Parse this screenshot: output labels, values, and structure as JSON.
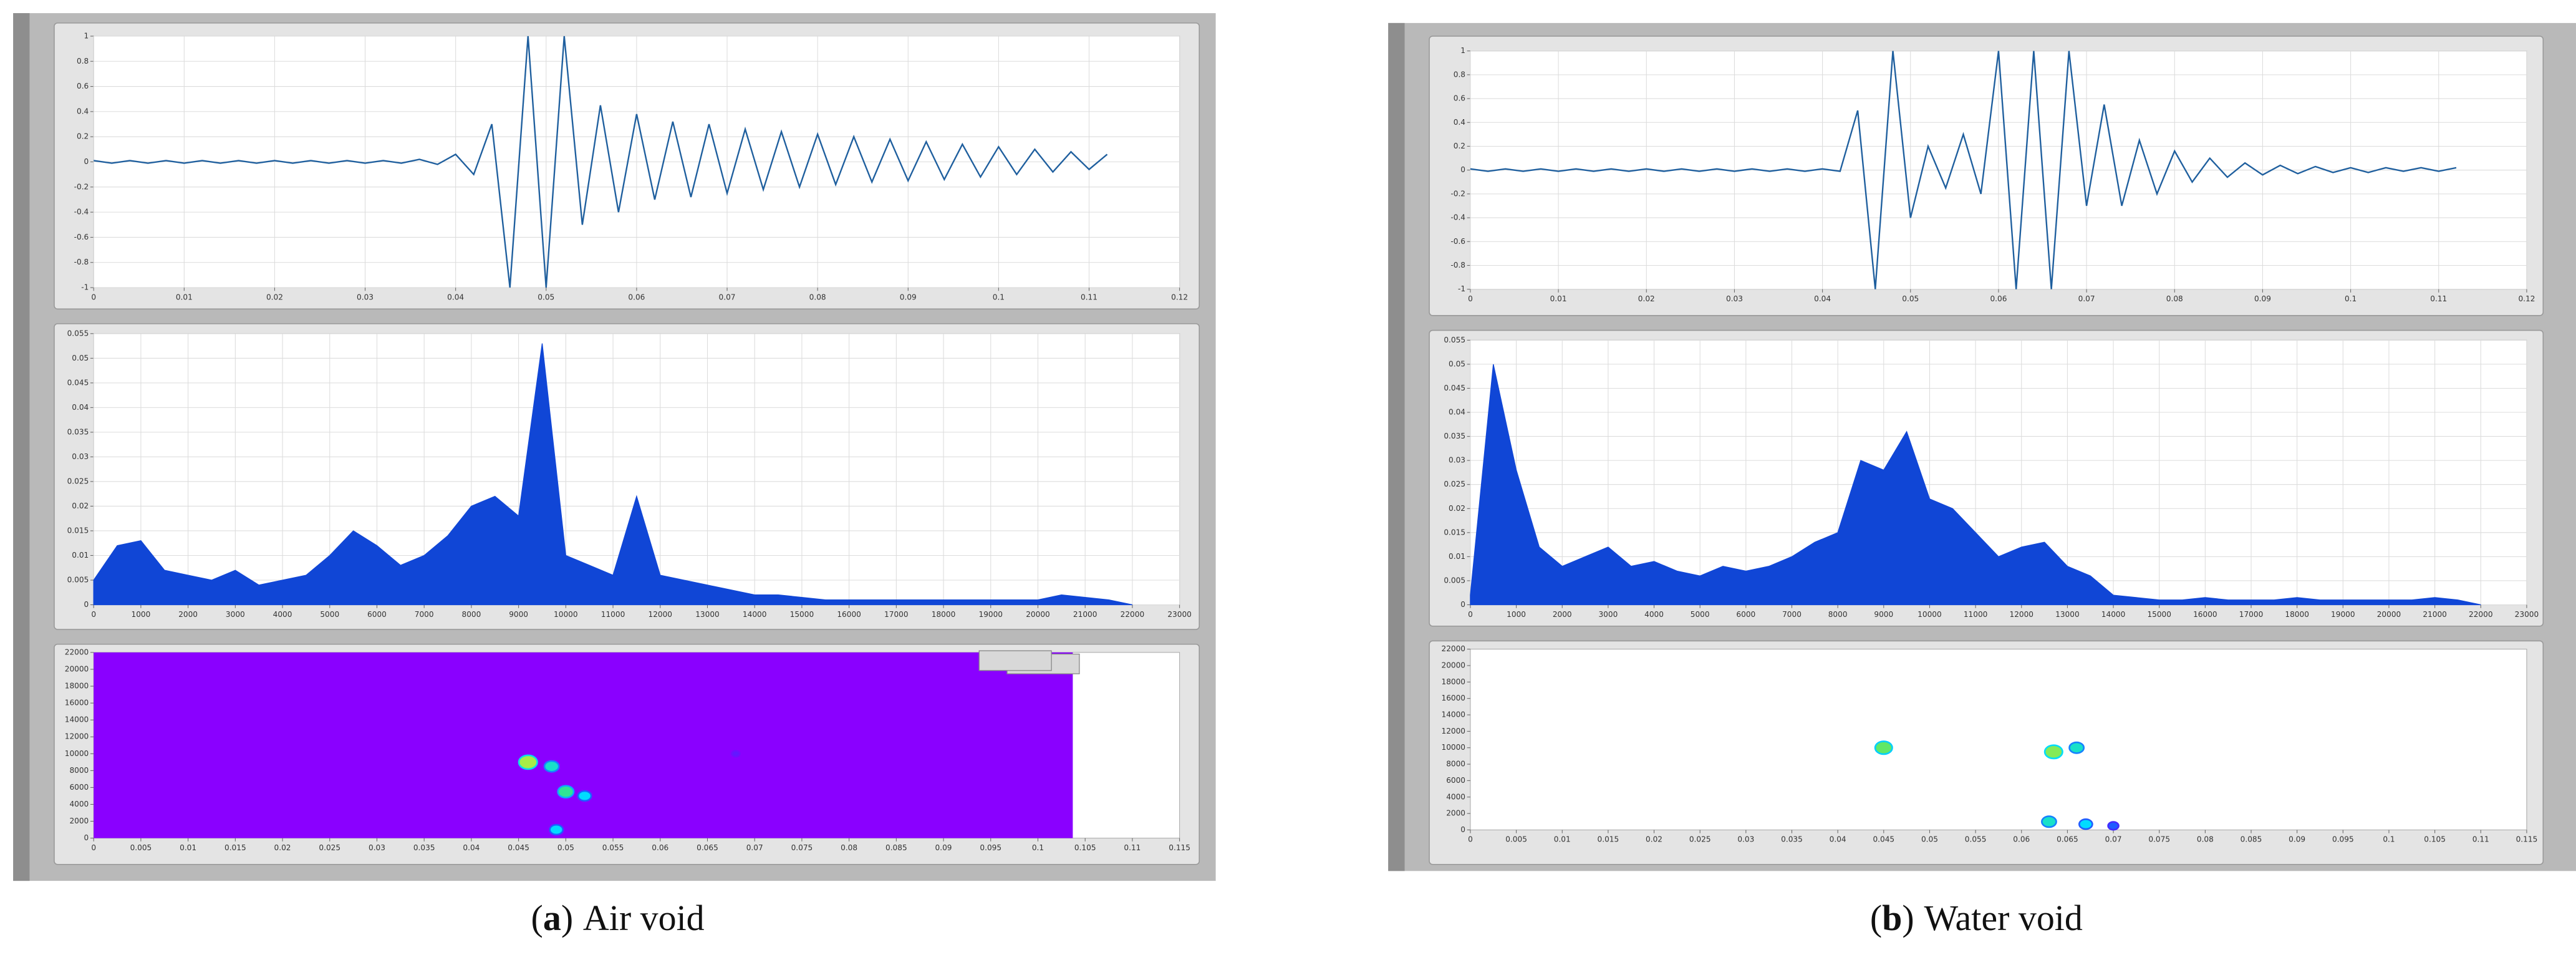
{
  "chart_data": [
    {
      "type": "line",
      "color": "#1f5f9e",
      "grid": true,
      "x": [
        0,
        0.002,
        0.004,
        0.006,
        0.008,
        0.01,
        0.012,
        0.014,
        0.016,
        0.018,
        0.02,
        0.022,
        0.024,
        0.026,
        0.028,
        0.03,
        0.032,
        0.034,
        0.036,
        0.038,
        0.04,
        0.042,
        0.044,
        0.046,
        0.048,
        0.05,
        0.052,
        0.054,
        0.056,
        0.058,
        0.06,
        0.062,
        0.064,
        0.066,
        0.068,
        0.07,
        0.072,
        0.074,
        0.076,
        0.078,
        0.08,
        0.082,
        0.084,
        0.086,
        0.088,
        0.09,
        0.092,
        0.094,
        0.096,
        0.098,
        0.1,
        0.102,
        0.104,
        0.106,
        0.108,
        0.11,
        0.112
      ],
      "values": [
        0.01,
        -0.01,
        0.01,
        -0.01,
        0.01,
        -0.01,
        0.01,
        -0.01,
        0.01,
        -0.01,
        0.01,
        -0.01,
        0.01,
        -0.01,
        0.01,
        -0.01,
        0.01,
        -0.01,
        0.02,
        -0.02,
        0.06,
        -0.1,
        0.3,
        -1,
        1,
        -1,
        1,
        -0.5,
        0.45,
        -0.4,
        0.38,
        -0.3,
        0.32,
        -0.28,
        0.3,
        -0.25,
        0.26,
        -0.22,
        0.24,
        -0.2,
        0.22,
        -0.18,
        0.2,
        -0.16,
        0.18,
        -0.15,
        0.16,
        -0.14,
        0.14,
        -0.12,
        0.12,
        -0.1,
        0.1,
        -0.08,
        0.08,
        -0.06,
        0.06
      ],
      "xlim": [
        0,
        0.12
      ],
      "xticks": [
        0,
        0.01,
        0.02,
        0.03,
        0.04,
        0.05,
        0.06,
        0.07,
        0.08,
        0.09,
        0.1,
        0.11,
        0.12
      ],
      "ylim": [
        -1,
        1
      ],
      "yticks": [
        -1,
        -0.8,
        -0.6,
        -0.4,
        -0.2,
        0,
        0.2,
        0.4,
        0.6,
        0.8,
        1
      ]
    },
    {
      "type": "area",
      "color": "#1046d6",
      "grid": true,
      "x": [
        0,
        500,
        1000,
        1500,
        2000,
        2500,
        3000,
        3500,
        4000,
        4500,
        5000,
        5500,
        6000,
        6500,
        7000,
        7500,
        8000,
        8500,
        9000,
        9500,
        10000,
        10500,
        11000,
        11500,
        12000,
        12500,
        13000,
        13500,
        14000,
        14500,
        15000,
        15500,
        16000,
        16500,
        17000,
        17500,
        18000,
        18500,
        19000,
        19500,
        20000,
        20500,
        21000,
        21500,
        22000
      ],
      "values": [
        0.005,
        0.012,
        0.013,
        0.007,
        0.006,
        0.005,
        0.007,
        0.004,
        0.005,
        0.006,
        0.01,
        0.015,
        0.012,
        0.008,
        0.01,
        0.014,
        0.02,
        0.022,
        0.018,
        0.053,
        0.01,
        0.008,
        0.006,
        0.022,
        0.006,
        0.005,
        0.004,
        0.003,
        0.002,
        0.002,
        0.0015,
        0.001,
        0.001,
        0.001,
        0.001,
        0.001,
        0.001,
        0.001,
        0.001,
        0.001,
        0.001,
        0.002,
        0.0015,
        0.001,
        0
      ],
      "xlim": [
        0,
        23000
      ],
      "xticks": [
        0,
        1000,
        2000,
        3000,
        4000,
        5000,
        6000,
        7000,
        8000,
        9000,
        10000,
        11000,
        12000,
        13000,
        14000,
        15000,
        16000,
        17000,
        18000,
        19000,
        20000,
        21000,
        22000,
        23000
      ],
      "ylim": [
        0,
        0.055
      ],
      "yticks": [
        0,
        0.005,
        0.01,
        0.015,
        0.02,
        0.025,
        0.03,
        0.035,
        0.04,
        0.045,
        0.05,
        0.055
      ]
    },
    {
      "type": "heatmap",
      "color": "#8a00ff",
      "x": [
        0.046,
        0.0485,
        0.05,
        0.052,
        0.049,
        0.068
      ],
      "y": [
        9000,
        8500,
        5500,
        5000,
        1000,
        10000
      ],
      "values": [
        0.9,
        0.6,
        0.7,
        0.5,
        0.5,
        0.1
      ],
      "xlim": [
        0,
        0.115
      ],
      "xticks": [
        0,
        0.005,
        0.01,
        0.015,
        0.02,
        0.025,
        0.03,
        0.035,
        0.04,
        0.045,
        0.05,
        0.055,
        0.06,
        0.065,
        0.07,
        0.075,
        0.08,
        0.085,
        0.09,
        0.095,
        0.1,
        0.105,
        0.11,
        0.115
      ],
      "ylim": [
        0,
        22000
      ],
      "yticks": [
        0,
        2000,
        4000,
        6000,
        8000,
        10000,
        12000,
        14000,
        16000,
        18000,
        20000,
        22000
      ]
    },
    {
      "type": "line",
      "color": "#1f5f9e",
      "grid": true,
      "x": [
        0,
        0.002,
        0.004,
        0.006,
        0.008,
        0.01,
        0.012,
        0.014,
        0.016,
        0.018,
        0.02,
        0.022,
        0.024,
        0.026,
        0.028,
        0.03,
        0.032,
        0.034,
        0.036,
        0.038,
        0.04,
        0.042,
        0.044,
        0.046,
        0.048,
        0.05,
        0.052,
        0.054,
        0.056,
        0.058,
        0.06,
        0.062,
        0.064,
        0.066,
        0.068,
        0.07,
        0.072,
        0.074,
        0.076,
        0.078,
        0.08,
        0.082,
        0.084,
        0.086,
        0.088,
        0.09,
        0.092,
        0.094,
        0.096,
        0.098,
        0.1,
        0.102,
        0.104,
        0.106,
        0.108,
        0.11,
        0.112
      ],
      "values": [
        0.01,
        -0.01,
        0.01,
        -0.01,
        0.01,
        -0.01,
        0.01,
        -0.01,
        0.01,
        -0.01,
        0.01,
        -0.01,
        0.01,
        -0.01,
        0.01,
        -0.01,
        0.01,
        -0.01,
        0.01,
        -0.01,
        0.01,
        -0.01,
        0.5,
        -1,
        1,
        -0.4,
        0.2,
        -0.15,
        0.3,
        -0.2,
        1,
        -1,
        1,
        -1,
        1,
        -0.3,
        0.55,
        -0.3,
        0.25,
        -0.2,
        0.16,
        -0.1,
        0.1,
        -0.06,
        0.06,
        -0.04,
        0.04,
        -0.03,
        0.03,
        -0.02,
        0.02,
        -0.02,
        0.02,
        -0.01,
        0.02,
        -0.01,
        0.02
      ],
      "xlim": [
        0,
        0.12
      ],
      "xticks": [
        0,
        0.01,
        0.02,
        0.03,
        0.04,
        0.05,
        0.06,
        0.07,
        0.08,
        0.09,
        0.1,
        0.11,
        0.12
      ],
      "ylim": [
        -1,
        1
      ],
      "yticks": [
        -1,
        -0.8,
        -0.6,
        -0.4,
        -0.2,
        0,
        0.2,
        0.4,
        0.6,
        0.8,
        1
      ]
    },
    {
      "type": "area",
      "color": "#1046d6",
      "grid": true,
      "x": [
        0,
        500,
        1000,
        1500,
        2000,
        2500,
        3000,
        3500,
        4000,
        4500,
        5000,
        5500,
        6000,
        6500,
        7000,
        7500,
        8000,
        8500,
        9000,
        9500,
        10000,
        10500,
        11000,
        11500,
        12000,
        12500,
        13000,
        13500,
        14000,
        14500,
        15000,
        15500,
        16000,
        16500,
        17000,
        17500,
        18000,
        18500,
        19000,
        19500,
        20000,
        20500,
        21000,
        21500,
        22000
      ],
      "values": [
        0.002,
        0.05,
        0.028,
        0.012,
        0.008,
        0.01,
        0.012,
        0.008,
        0.009,
        0.007,
        0.006,
        0.008,
        0.007,
        0.008,
        0.01,
        0.013,
        0.015,
        0.03,
        0.028,
        0.036,
        0.022,
        0.02,
        0.015,
        0.01,
        0.012,
        0.013,
        0.008,
        0.006,
        0.002,
        0.0015,
        0.001,
        0.001,
        0.0015,
        0.001,
        0.001,
        0.001,
        0.0015,
        0.001,
        0.001,
        0.001,
        0.001,
        0.001,
        0.0015,
        0.001,
        0
      ],
      "xlim": [
        0,
        23000
      ],
      "xticks": [
        0,
        1000,
        2000,
        3000,
        4000,
        5000,
        6000,
        7000,
        8000,
        9000,
        10000,
        11000,
        12000,
        13000,
        14000,
        15000,
        16000,
        17000,
        18000,
        19000,
        20000,
        21000,
        22000,
        23000
      ],
      "ylim": [
        0,
        0.055
      ],
      "yticks": [
        0,
        0.005,
        0.01,
        0.015,
        0.02,
        0.025,
        0.03,
        0.035,
        0.04,
        0.045,
        0.05,
        0.055
      ]
    },
    {
      "type": "heatmap",
      "color": "#8a00ff",
      "x": [
        0.045,
        0.0635,
        0.066,
        0.063,
        0.067,
        0.07
      ],
      "y": [
        10000,
        9500,
        10000,
        1000,
        700,
        500
      ],
      "values": [
        0.8,
        0.85,
        0.6,
        0.6,
        0.5,
        0.3
      ],
      "xlim": [
        0,
        0.115
      ],
      "xticks": [
        0,
        0.005,
        0.01,
        0.015,
        0.02,
        0.025,
        0.03,
        0.035,
        0.04,
        0.045,
        0.05,
        0.055,
        0.06,
        0.065,
        0.07,
        0.075,
        0.08,
        0.085,
        0.09,
        0.095,
        0.1,
        0.105,
        0.11,
        0.115
      ],
      "ylim": [
        0,
        22000
      ],
      "yticks": [
        0,
        2000,
        4000,
        6000,
        8000,
        10000,
        12000,
        14000,
        16000,
        18000,
        20000,
        22000
      ]
    }
  ],
  "captions": [
    {
      "open": "(",
      "label": "a",
      "close": ")",
      "text": "Air void"
    },
    {
      "open": "(",
      "label": "b",
      "close": ")",
      "text": "Water void"
    }
  ]
}
